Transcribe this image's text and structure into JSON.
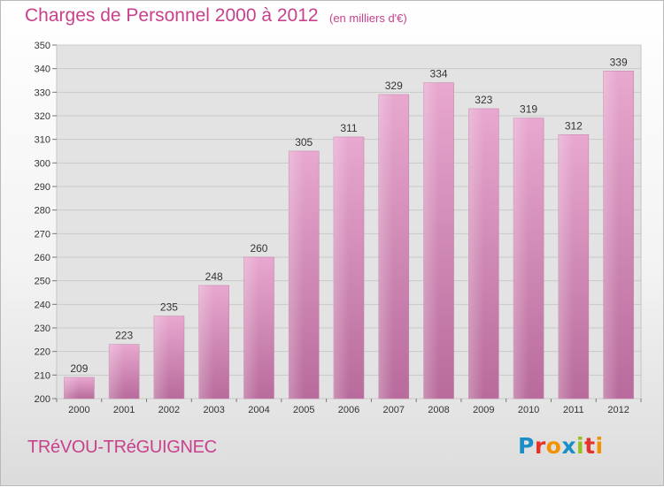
{
  "page": {
    "title": "Charges de Personnel 2000 à 2012",
    "unit_note": "(en milliers d'€)",
    "commune": "TRéVOU-TRéGUIGNEC",
    "logo": {
      "text": "Proxiti",
      "letters": [
        {
          "ch": "P",
          "color": "#1a8ec6"
        },
        {
          "ch": "r",
          "color": "#e6332a"
        },
        {
          "ch": "o",
          "color": "#f39200"
        },
        {
          "ch": "x",
          "color": "#1a8ec6"
        },
        {
          "ch": "i",
          "color": "#95c11f"
        },
        {
          "ch": "t",
          "color": "#e6332a"
        },
        {
          "ch": "i",
          "color": "#f39200"
        }
      ]
    }
  },
  "chart_data": {
    "type": "bar",
    "categories": [
      "2000",
      "2001",
      "2002",
      "2003",
      "2004",
      "2005",
      "2006",
      "2007",
      "2008",
      "2009",
      "2010",
      "2011",
      "2012"
    ],
    "values": [
      209,
      223,
      235,
      248,
      260,
      305,
      311,
      329,
      334,
      323,
      319,
      312,
      339
    ],
    "title": "Charges de Personnel 2000 à 2012",
    "subtitle": "(en milliers d'€)",
    "ylim": [
      200,
      350
    ],
    "yticks": [
      200,
      210,
      220,
      230,
      240,
      250,
      260,
      270,
      280,
      290,
      300,
      310,
      320,
      330,
      340,
      350
    ],
    "grid": true,
    "bar_color": "#d98fbb"
  }
}
